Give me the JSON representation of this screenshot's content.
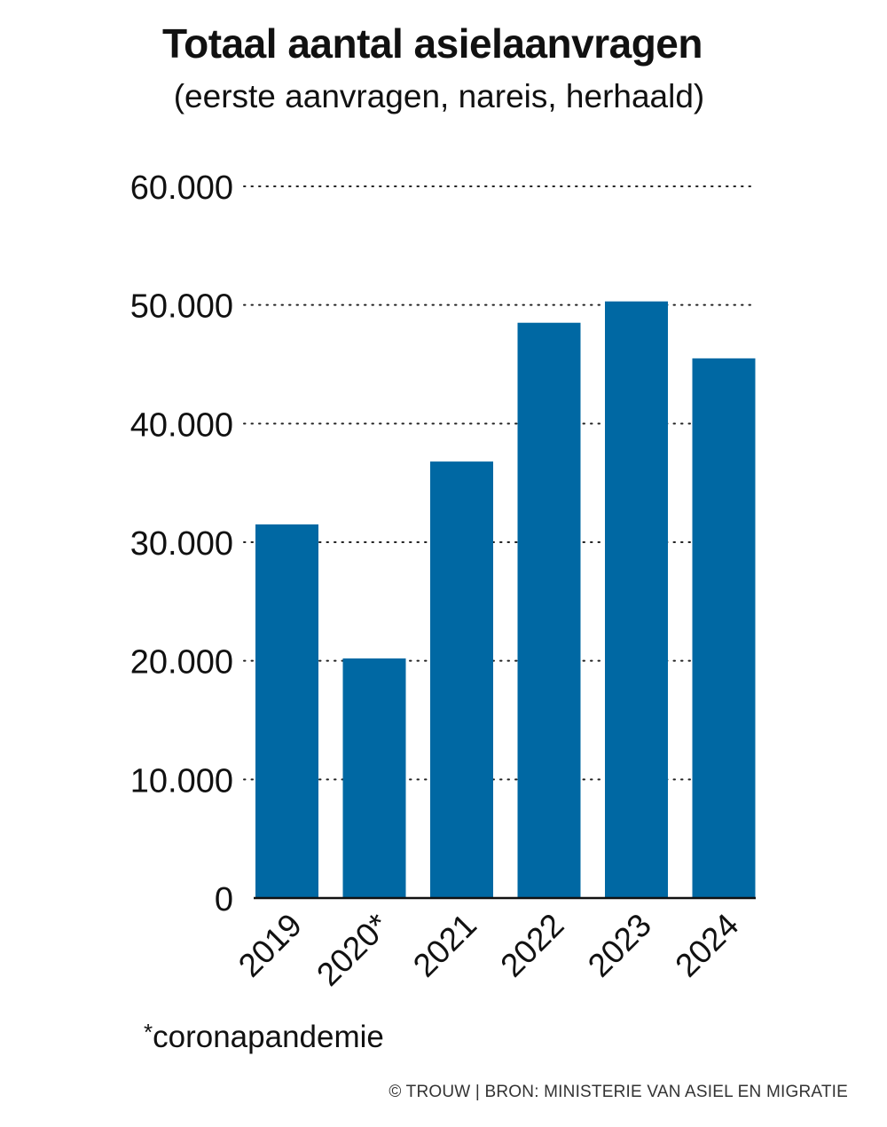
{
  "chart_data": {
    "type": "bar",
    "title": "Totaal aantal asielaanvragen",
    "subtitle": "(eerste aanvragen, nareis, herhaald)",
    "categories": [
      "2019",
      "2020*",
      "2021",
      "2022",
      "2023",
      "2024"
    ],
    "values": [
      31500,
      20200,
      36800,
      48500,
      50300,
      45500
    ],
    "y_ticks": [
      "0",
      "10.000",
      "20.000",
      "30.000",
      "40.000",
      "50.000",
      "60.000"
    ],
    "ylim": [
      0,
      60000
    ],
    "xlabel": "",
    "ylabel": "",
    "grid": "dotted horizontal",
    "bar_color": "#0068A3",
    "footnote_marker": "*",
    "footnote_text": "coronapandemie",
    "credit": "© TROUW | BRON: MINISTERIE VAN ASIEL EN MIGRATIE"
  }
}
